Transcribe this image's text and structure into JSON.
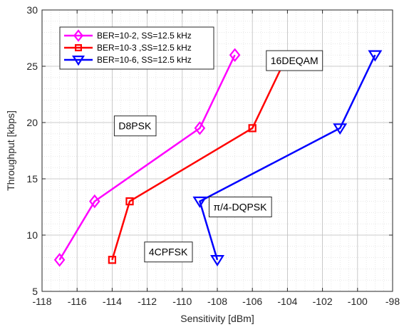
{
  "chart_data": {
    "type": "line",
    "title": "",
    "xlabel": "Sensitivity [dBm]",
    "ylabel": "Throughput [kbps]",
    "xlim": [
      -118,
      -98
    ],
    "ylim": [
      5,
      30
    ],
    "xticks": [
      -118,
      -116,
      -114,
      -112,
      -110,
      -108,
      -106,
      -104,
      -102,
      -100,
      -98
    ],
    "yticks": [
      5,
      10,
      15,
      20,
      25,
      30
    ],
    "xtick_labels": [
      "-118",
      "-116",
      "-114",
      "-112",
      "-110",
      "-108",
      "-106",
      "-104",
      "-102",
      "-100",
      "-98"
    ],
    "ytick_labels": [
      "5",
      "10",
      "15",
      "20",
      "25",
      "30"
    ],
    "grid": true,
    "minor_grid": true,
    "legend_position": "top-left",
    "series": [
      {
        "name": "BER=10-2, SS=12.5 kHz",
        "color": "#ff00ff",
        "marker": "diamond",
        "x": [
          -117,
          -115,
          -109,
          -107
        ],
        "y": [
          7.8,
          13,
          19.5,
          26
        ]
      },
      {
        "name": "BER=10-3 ,SS=12.5 kHz",
        "color": "#ff0000",
        "marker": "square",
        "x": [
          -114,
          -113,
          -106,
          -104
        ],
        "y": [
          7.8,
          13,
          19.5,
          26
        ]
      },
      {
        "name": "BER=10-6, SS=12.5 kHz",
        "color": "#0000ff",
        "marker": "triangle-down",
        "x": [
          -108,
          -109,
          -101,
          -99
        ],
        "y": [
          7.8,
          13,
          19.5,
          26
        ]
      }
    ],
    "annotations": [
      {
        "text": "16DEQAM",
        "x": -103.6,
        "y": 25.5
      },
      {
        "text": "D8PSK",
        "x": -112.7,
        "y": 19.7
      },
      {
        "text": "π/4-DQPSK",
        "x": -106.7,
        "y": 12.5
      },
      {
        "text": "4CPFSK",
        "x": -110.8,
        "y": 8.5
      }
    ]
  }
}
